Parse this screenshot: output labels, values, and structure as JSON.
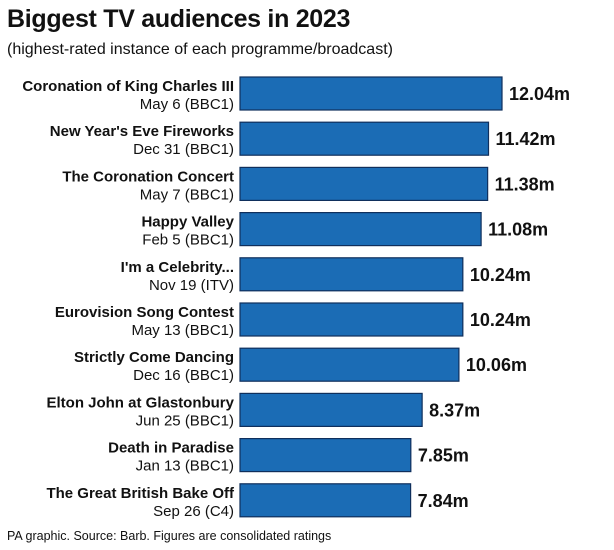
{
  "colors": {
    "bar": "#1b6cb5",
    "bar_edge": "#0f2f5c",
    "text": "#111111",
    "background": "#ffffff"
  },
  "chart_data": {
    "type": "bar",
    "orientation": "horizontal",
    "title": "Biggest TV audiences in 2023",
    "subtitle": "(highest-rated instance of each programme/broadcast)",
    "footer": "PA graphic. Source: Barb. Figures are consolidated ratings",
    "unit_suffix": "m",
    "categories": [
      "Coronation of King Charles III",
      "New Year's Eve Fireworks",
      "The Coronation Concert",
      "Happy Valley",
      "I'm a Celebrity...",
      "Eurovision Song Contest",
      "Strictly Come Dancing",
      "Elton John at Glastonbury",
      "Death in Paradise",
      "The Great British Bake Off"
    ],
    "details": [
      "May 6 (BBC1)",
      "Dec 31 (BBC1)",
      "May 7 (BBC1)",
      "Feb 5 (BBC1)",
      "Nov 19 (ITV)",
      "May 13 (BBC1)",
      "Dec 16 (BBC1)",
      "Jun 25 (BBC1)",
      "Jan 13 (BBC1)",
      "Sep 26 (C4)"
    ],
    "values": [
      12.04,
      11.42,
      11.38,
      11.08,
      10.24,
      10.24,
      10.06,
      8.37,
      7.85,
      7.84
    ],
    "value_labels": [
      "12.04m",
      "11.42m",
      "11.38m",
      "11.08m",
      "10.24m",
      "10.24m",
      "10.06m",
      "8.37m",
      "7.85m",
      "7.84m"
    ],
    "xlim": [
      0,
      12.04
    ],
    "grid": false,
    "legend": "none"
  }
}
